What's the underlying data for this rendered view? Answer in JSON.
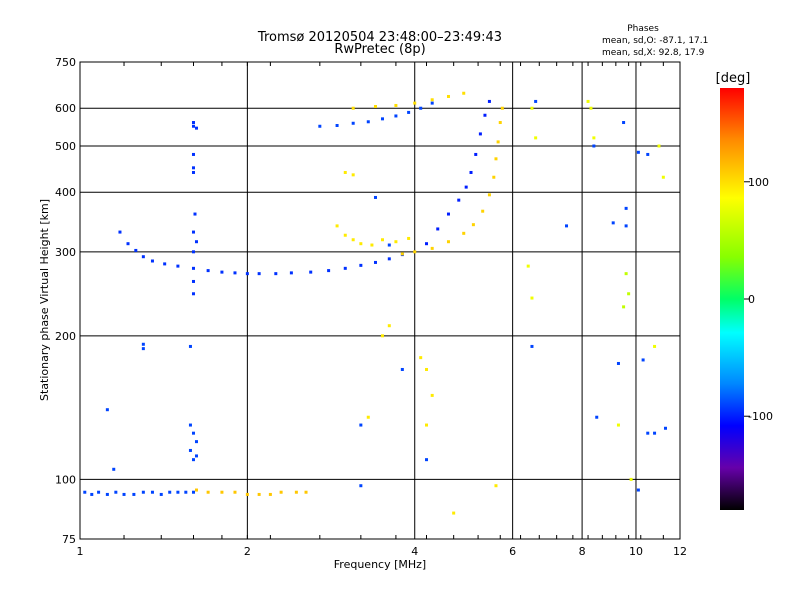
{
  "chart_data": {
    "type": "scatter",
    "title": "Tromsø 20120504 23:48:00–23:49:43",
    "subtitle": "RwPretec (8p)",
    "phases_header": "Phases",
    "phases_lines": [
      "mean, sd,O: -87.1, 17.1",
      "mean, sd,X:  92.8, 17.9"
    ],
    "xlabel": "Frequency [MHz]",
    "ylabel": "Stationary phase Virtual Height [km]",
    "x_scale": "log",
    "y_scale": "log",
    "xlim": [
      1,
      12
    ],
    "ylim": [
      75,
      750
    ],
    "x_ticks": [
      1,
      2,
      4,
      6,
      8,
      10,
      12
    ],
    "y_ticks": [
      75,
      100,
      200,
      300,
      400,
      500,
      600,
      750
    ],
    "grid": true,
    "colorbar": {
      "label": "[deg]",
      "range": [
        -180,
        180
      ],
      "ticks": [
        100,
        0,
        -100
      ]
    },
    "series": [
      {
        "phase": -90,
        "points": [
          [
            1.02,
            94
          ],
          [
            1.05,
            93
          ],
          [
            1.08,
            94
          ],
          [
            1.12,
            93
          ],
          [
            1.16,
            94
          ],
          [
            1.2,
            93
          ],
          [
            1.25,
            93
          ],
          [
            1.3,
            94
          ],
          [
            1.35,
            94
          ],
          [
            1.4,
            93
          ],
          [
            1.45,
            94
          ],
          [
            1.5,
            94
          ],
          [
            1.55,
            94
          ],
          [
            1.6,
            94
          ]
        ]
      },
      {
        "phase": 110,
        "points": [
          [
            1.62,
            95
          ],
          [
            1.7,
            94
          ],
          [
            1.8,
            94
          ],
          [
            1.9,
            94
          ],
          [
            2.0,
            93
          ],
          [
            2.1,
            93
          ],
          [
            2.2,
            93
          ],
          [
            2.3,
            94
          ],
          [
            2.45,
            94
          ],
          [
            2.55,
            94
          ]
        ]
      },
      {
        "phase": -95,
        "points": [
          [
            1.18,
            330
          ],
          [
            1.22,
            312
          ],
          [
            1.26,
            302
          ],
          [
            1.3,
            293
          ],
          [
            1.35,
            287
          ],
          [
            1.42,
            283
          ],
          [
            1.5,
            280
          ],
          [
            1.6,
            277
          ],
          [
            1.7,
            274
          ],
          [
            1.8,
            272
          ],
          [
            1.9,
            271
          ],
          [
            2.0,
            270
          ],
          [
            2.1,
            270
          ],
          [
            2.25,
            270
          ],
          [
            2.4,
            271
          ],
          [
            2.6,
            272
          ],
          [
            2.8,
            274
          ],
          [
            3.0,
            277
          ],
          [
            3.2,
            281
          ],
          [
            3.4,
            285
          ],
          [
            3.6,
            290
          ],
          [
            3.8,
            296
          ]
        ]
      },
      {
        "phase": 105,
        "points": [
          [
            3.8,
            297
          ],
          [
            4.0,
            300
          ],
          [
            4.3,
            305
          ],
          [
            4.6,
            315
          ],
          [
            4.9,
            328
          ],
          [
            5.1,
            342
          ],
          [
            5.3,
            365
          ],
          [
            5.45,
            395
          ],
          [
            5.55,
            430
          ],
          [
            5.6,
            470
          ],
          [
            5.65,
            510
          ],
          [
            5.7,
            560
          ],
          [
            5.75,
            600
          ]
        ]
      },
      {
        "phase": -100,
        "points": [
          [
            4.2,
            312
          ],
          [
            4.4,
            335
          ],
          [
            4.6,
            360
          ],
          [
            4.8,
            385
          ],
          [
            4.95,
            410
          ],
          [
            5.05,
            440
          ],
          [
            5.15,
            480
          ],
          [
            5.25,
            530
          ],
          [
            5.35,
            580
          ],
          [
            5.45,
            620
          ]
        ]
      },
      {
        "phase": 95,
        "points": [
          [
            2.9,
            340
          ],
          [
            3.0,
            325
          ],
          [
            3.1,
            318
          ],
          [
            3.2,
            312
          ],
          [
            3.35,
            310
          ],
          [
            3.5,
            318
          ],
          [
            3.7,
            315
          ],
          [
            3.9,
            320
          ]
        ]
      },
      {
        "phase": -90,
        "points": [
          [
            2.7,
            550
          ],
          [
            2.9,
            552
          ],
          [
            3.1,
            558
          ],
          [
            3.3,
            562
          ],
          [
            3.5,
            570
          ],
          [
            3.7,
            578
          ],
          [
            3.9,
            588
          ],
          [
            4.1,
            600
          ],
          [
            4.3,
            615
          ]
        ]
      },
      {
        "phase": 100,
        "points": [
          [
            3.1,
            600
          ],
          [
            3.4,
            605
          ],
          [
            3.7,
            608
          ],
          [
            4.0,
            615
          ],
          [
            4.3,
            625
          ],
          [
            4.6,
            635
          ],
          [
            4.9,
            645
          ]
        ]
      },
      {
        "phase": -95,
        "points": [
          [
            1.6,
            560
          ],
          [
            1.6,
            550
          ],
          [
            1.62,
            545
          ],
          [
            1.6,
            480
          ],
          [
            1.6,
            450
          ],
          [
            1.6,
            440
          ],
          [
            1.61,
            360
          ],
          [
            1.6,
            330
          ],
          [
            1.62,
            315
          ],
          [
            1.6,
            300
          ],
          [
            1.6,
            260
          ],
          [
            1.6,
            245
          ]
        ]
      },
      {
        "phase": -90,
        "points": [
          [
            1.58,
            130
          ],
          [
            1.6,
            125
          ],
          [
            1.62,
            120
          ],
          [
            1.58,
            115
          ],
          [
            1.6,
            110
          ],
          [
            1.62,
            112
          ]
        ]
      },
      {
        "phase": -90,
        "points": [
          [
            1.3,
            192
          ],
          [
            1.3,
            188
          ],
          [
            1.58,
            190
          ],
          [
            1.12,
            140
          ],
          [
            1.15,
            105
          ]
        ]
      },
      {
        "phase": 95,
        "points": [
          [
            3.0,
            440
          ],
          [
            3.1,
            435
          ],
          [
            3.6,
            210
          ],
          [
            3.5,
            200
          ],
          [
            3.3,
            135
          ],
          [
            4.1,
            180
          ],
          [
            4.2,
            170
          ],
          [
            4.3,
            150
          ],
          [
            4.2,
            130
          ],
          [
            5.6,
            97
          ],
          [
            4.7,
            85
          ]
        ]
      },
      {
        "phase": -90,
        "points": [
          [
            3.4,
            390
          ],
          [
            3.6,
            310
          ],
          [
            3.8,
            170
          ],
          [
            3.2,
            130
          ],
          [
            3.2,
            97
          ],
          [
            4.2,
            110
          ]
        ]
      },
      {
        "phase": 80,
        "points": [
          [
            6.5,
            600
          ],
          [
            6.6,
            520
          ],
          [
            6.4,
            280
          ],
          [
            6.5,
            240
          ],
          [
            8.2,
            620
          ],
          [
            8.3,
            600
          ],
          [
            8.4,
            520
          ],
          [
            9.3,
            130
          ],
          [
            9.8,
            100
          ],
          [
            10.8,
            190
          ],
          [
            11.0,
            500
          ],
          [
            11.2,
            430
          ]
        ]
      },
      {
        "phase": -90,
        "points": [
          [
            6.6,
            620
          ],
          [
            6.5,
            190
          ],
          [
            7.5,
            340
          ],
          [
            8.4,
            500
          ],
          [
            8.5,
            135
          ],
          [
            9.1,
            345
          ],
          [
            9.5,
            560
          ],
          [
            9.6,
            370
          ],
          [
            9.6,
            340
          ],
          [
            10.1,
            485
          ],
          [
            10.5,
            480
          ],
          [
            9.3,
            175
          ],
          [
            10.3,
            178
          ],
          [
            10.5,
            125
          ],
          [
            10.8,
            125
          ],
          [
            11.3,
            128
          ],
          [
            10.1,
            95
          ]
        ]
      },
      {
        "phase": 60,
        "points": [
          [
            9.6,
            270
          ],
          [
            9.7,
            245
          ],
          [
            9.5,
            230
          ]
        ]
      }
    ]
  }
}
